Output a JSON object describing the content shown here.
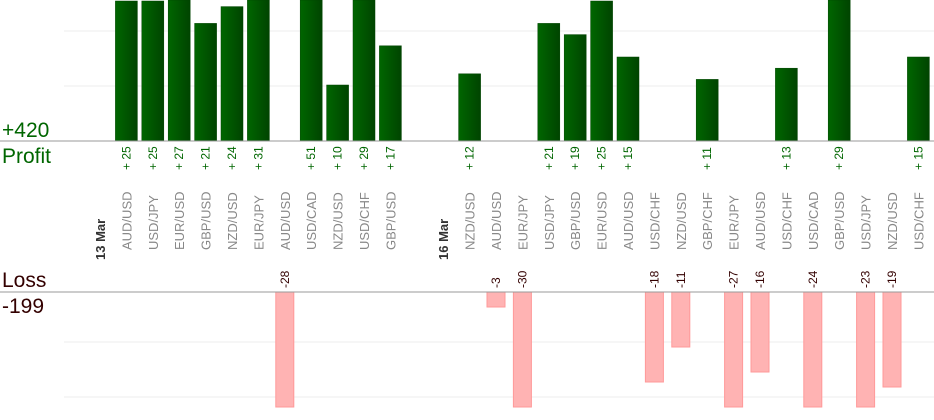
{
  "summary": {
    "profit_total": "+420",
    "profit_label": "Profit",
    "loss_label": "Loss",
    "loss_total": "-199"
  },
  "colors": {
    "profit": "#006600",
    "loss": "#ffb3b3",
    "loss_text": "#330000",
    "pair_text": "#888888"
  },
  "chart_data": {
    "type": "bar",
    "title": "",
    "xlabel": "",
    "ylabel": "",
    "profit_ylim": [
      0,
      25
    ],
    "loss_ylim": [
      0,
      -23
    ],
    "grid": true,
    "columns": [
      {
        "date": "13 Mar"
      },
      {
        "pair": "AUD/USD",
        "value": 25
      },
      {
        "pair": "USD/JPY",
        "value": 25
      },
      {
        "pair": "EUR/USD",
        "value": 27
      },
      {
        "pair": "GBP/USD",
        "value": 21
      },
      {
        "pair": "NZD/USD",
        "value": 24
      },
      {
        "pair": "EUR/JPY",
        "value": 31
      },
      {
        "pair": "AUD/USD",
        "value": -28
      },
      {
        "pair": "USD/CAD",
        "value": 51
      },
      {
        "pair": "NZD/USD",
        "value": 10
      },
      {
        "pair": "USD/CHF",
        "value": 29
      },
      {
        "pair": "GBP/USD",
        "value": 17
      },
      {},
      {
        "date": "16 Mar"
      },
      {
        "pair": "NZD/USD",
        "value": 12
      },
      {
        "pair": "AUD/USD",
        "value": -3
      },
      {
        "pair": "EUR/JPY",
        "value": -30
      },
      {
        "pair": "USD/JPY",
        "value": 21
      },
      {
        "pair": "GBP/USD",
        "value": 19
      },
      {
        "pair": "EUR/USD",
        "value": 25
      },
      {
        "pair": "AUD/USD",
        "value": 15
      },
      {
        "pair": "USD/CHF",
        "value": -18
      },
      {
        "pair": "NZD/USD",
        "value": -11
      },
      {
        "pair": "GBP/CHF",
        "value": 11
      },
      {
        "pair": "EUR/JPY",
        "value": -27
      },
      {
        "pair": "AUD/USD",
        "value": -16
      },
      {
        "pair": "USD/CHF",
        "value": 13
      },
      {
        "pair": "USD/CAD",
        "value": -24
      },
      {
        "pair": "GBP/USD",
        "value": 29
      },
      {
        "pair": "USD/JPY",
        "value": -23
      },
      {
        "pair": "NZD/USD",
        "value": -19
      },
      {
        "pair": "USD/CHF",
        "value": 15
      }
    ]
  }
}
